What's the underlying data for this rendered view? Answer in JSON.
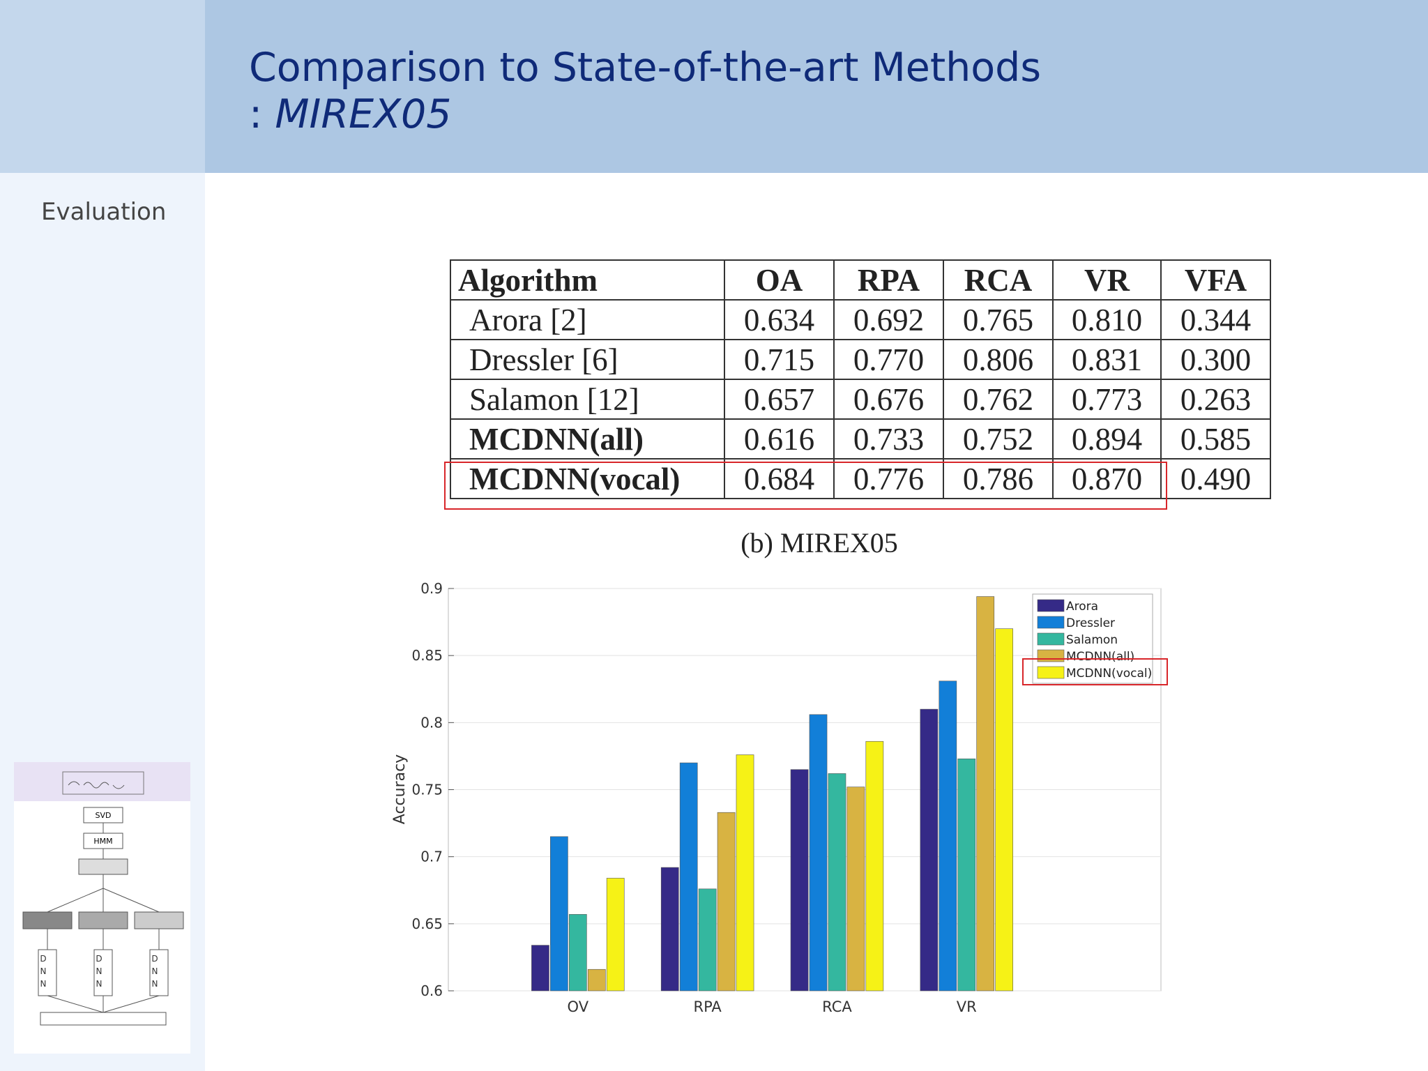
{
  "header": {
    "title": "Comparison to State-of-the-art Methods",
    "subtitle_prefix": ":",
    "subtitle": "MIREX05"
  },
  "sidebar": {
    "section": "Evaluation"
  },
  "thumbnail": {
    "labels": [
      "SVD",
      "HMM"
    ],
    "dnn": "DNN"
  },
  "table": {
    "header": [
      "Algorithm",
      "OA",
      "RPA",
      "RCA",
      "VR",
      "VFA"
    ],
    "rows": [
      [
        "Arora [2]",
        "0.634",
        "0.692",
        "0.765",
        "0.810",
        "0.344"
      ],
      [
        "Dressler [6]",
        "0.715",
        "0.770",
        "0.806",
        "0.831",
        "0.300"
      ],
      [
        "Salamon [12]",
        "0.657",
        "0.676",
        "0.762",
        "0.773",
        "0.263"
      ],
      [
        "MCDNN(all)",
        "0.616",
        "0.733",
        "0.752",
        "0.894",
        "0.585"
      ],
      [
        "MCDNN(vocal)",
        "0.684",
        "0.776",
        "0.786",
        "0.870",
        "0.490"
      ]
    ],
    "caption": "(b) MIREX05"
  },
  "chart_data": {
    "type": "bar",
    "y_label": "Accuracy",
    "categories": [
      "OV",
      "RPA",
      "RCA",
      "VR"
    ],
    "series": [
      {
        "name": "Arora",
        "color": "#352a87",
        "values": [
          0.634,
          0.692,
          0.765,
          0.81
        ]
      },
      {
        "name": "Dressler",
        "color": "#127fd8",
        "values": [
          0.715,
          0.77,
          0.806,
          0.831
        ]
      },
      {
        "name": "Salamon",
        "color": "#34b79f",
        "values": [
          0.657,
          0.676,
          0.762,
          0.773
        ]
      },
      {
        "name": "MCDNN(all)",
        "color": "#d8b342",
        "values": [
          0.616,
          0.733,
          0.752,
          0.894
        ]
      },
      {
        "name": "MCDNN(vocal)",
        "color": "#f6f216",
        "values": [
          0.684,
          0.776,
          0.786,
          0.87
        ]
      }
    ],
    "ylim": [
      0.6,
      0.9
    ],
    "yticks": [
      0.6,
      0.65,
      0.7,
      0.75,
      0.8,
      0.85,
      0.9
    ],
    "grid": true
  }
}
